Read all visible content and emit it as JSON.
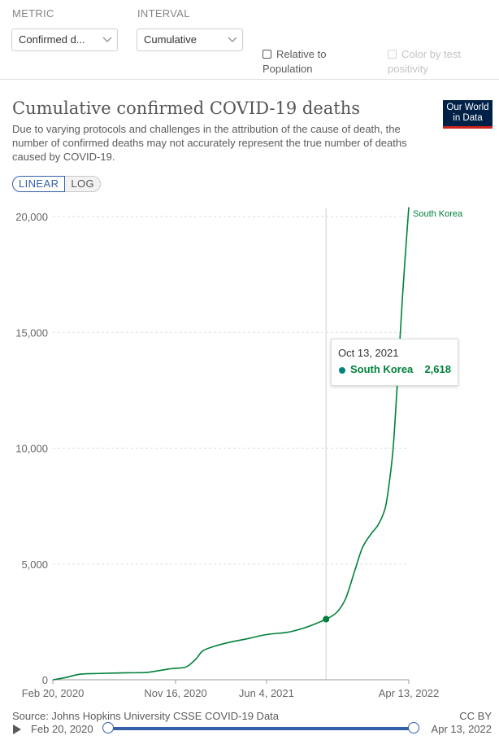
{
  "controls": {
    "metric": {
      "label": "METRIC",
      "value": "Confirmed d..."
    },
    "interval": {
      "label": "INTERVAL",
      "value": "Cumulative"
    },
    "relative": {
      "line1": "Relative to",
      "line2": "Population"
    },
    "color_by": {
      "line1": "Color by test",
      "line2": "positivity"
    }
  },
  "header": {
    "title": "Cumulative confirmed COVID-19 deaths",
    "subtitle": "Due to varying protocols and challenges in the attribution of the cause of death, the number of confirmed deaths may not accurately represent the true number of deaths caused by COVID-19.",
    "logo_line1": "Our World",
    "logo_line2": "in Data"
  },
  "scale_toggle": {
    "linear": "LINEAR",
    "log": "LOG"
  },
  "tooltip": {
    "date": "Oct 13, 2021",
    "series": "South Korea",
    "value": "2,618"
  },
  "chart_data": {
    "type": "line",
    "ylim": [
      0,
      20000
    ],
    "yticks": [
      0,
      5000,
      10000,
      15000,
      20000
    ],
    "ytick_labels": [
      "0",
      "5,000",
      "10,000",
      "15,000",
      "20,000"
    ],
    "xticks": [
      "2020-02-20",
      "2020-11-16",
      "2021-06-04",
      "2022-04-13"
    ],
    "xtick_labels": [
      "Feb 20, 2020",
      "Nov 16, 2020",
      "Jun 4, 2021",
      "Apr 13, 2022"
    ],
    "xlim": [
      "2020-02-20",
      "2022-04-13"
    ],
    "hover_date": "2021-10-13",
    "series": [
      {
        "name": "South Korea",
        "color": "#00813b",
        "points": [
          [
            "2020-02-20",
            0
          ],
          [
            "2020-03-20",
            100
          ],
          [
            "2020-04-20",
            240
          ],
          [
            "2020-06-01",
            272
          ],
          [
            "2020-08-01",
            301
          ],
          [
            "2020-09-15",
            320
          ],
          [
            "2020-10-30",
            460
          ],
          [
            "2020-11-16",
            494
          ],
          [
            "2020-12-10",
            560
          ],
          [
            "2020-12-31",
            900
          ],
          [
            "2021-01-15",
            1250
          ],
          [
            "2021-02-10",
            1450
          ],
          [
            "2021-03-15",
            1620
          ],
          [
            "2021-04-20",
            1760
          ],
          [
            "2021-06-04",
            1950
          ],
          [
            "2021-07-20",
            2050
          ],
          [
            "2021-08-20",
            2200
          ],
          [
            "2021-09-15",
            2380
          ],
          [
            "2021-10-13",
            2618
          ],
          [
            "2021-11-05",
            2900
          ],
          [
            "2021-11-25",
            3500
          ],
          [
            "2021-12-15",
            4700
          ],
          [
            "2022-01-01",
            5700
          ],
          [
            "2022-01-20",
            6300
          ],
          [
            "2022-02-05",
            6700
          ],
          [
            "2022-02-20",
            7400
          ],
          [
            "2022-03-01",
            8500
          ],
          [
            "2022-03-10",
            10100
          ],
          [
            "2022-03-20",
            13200
          ],
          [
            "2022-03-30",
            16500
          ],
          [
            "2022-04-06",
            18500
          ],
          [
            "2022-04-13",
            20400
          ]
        ]
      }
    ]
  },
  "footer": {
    "source": "Source: Johns Hopkins University CSSE COVID-19 Data",
    "license": "CC BY"
  },
  "timeline": {
    "start": "Feb 20, 2020",
    "end": "Apr 13, 2022",
    "start_fraction": 0,
    "end_fraction": 1
  }
}
